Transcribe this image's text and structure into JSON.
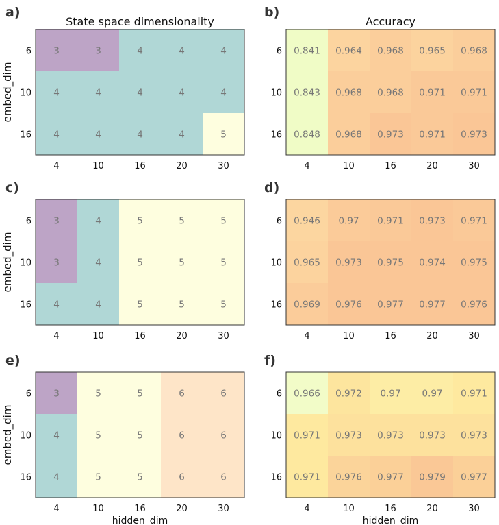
{
  "chart_data": [
    {
      "type": "heatmap",
      "panel": "a)",
      "title": "State space dimensionality",
      "xlabel": "",
      "ylabel": "embed_dim",
      "x": [
        "4",
        "10",
        "16",
        "20",
        "30"
      ],
      "y": [
        "6",
        "10",
        "16"
      ],
      "values": [
        [
          "3",
          "3",
          "4",
          "4",
          "4"
        ],
        [
          "4",
          "4",
          "4",
          "4",
          "4"
        ],
        [
          "4",
          "4",
          "4",
          "4",
          "5"
        ]
      ],
      "colormap": "discrete"
    },
    {
      "type": "heatmap",
      "panel": "b)",
      "title": "Accuracy",
      "xlabel": "",
      "ylabel": "",
      "x": [
        "4",
        "10",
        "16",
        "20",
        "30"
      ],
      "y": [
        "6",
        "10",
        "16"
      ],
      "values": [
        [
          "0.841",
          "0.964",
          "0.968",
          "0.965",
          "0.968"
        ],
        [
          "0.843",
          "0.968",
          "0.968",
          "0.971",
          "0.971"
        ],
        [
          "0.848",
          "0.968",
          "0.973",
          "0.971",
          "0.973"
        ]
      ],
      "colormap": "accuracy"
    },
    {
      "type": "heatmap",
      "panel": "c)",
      "title": "",
      "xlabel": "",
      "ylabel": "embed_dim",
      "x": [
        "4",
        "10",
        "16",
        "20",
        "30"
      ],
      "y": [
        "6",
        "10",
        "16"
      ],
      "values": [
        [
          "3",
          "4",
          "5",
          "5",
          "5"
        ],
        [
          "3",
          "4",
          "5",
          "5",
          "5"
        ],
        [
          "4",
          "4",
          "5",
          "5",
          "5"
        ]
      ],
      "colormap": "discrete"
    },
    {
      "type": "heatmap",
      "panel": "d)",
      "title": "",
      "xlabel": "",
      "ylabel": "",
      "x": [
        "4",
        "10",
        "16",
        "20",
        "30"
      ],
      "y": [
        "6",
        "10",
        "16"
      ],
      "values": [
        [
          "0.946",
          "0.97",
          "0.971",
          "0.973",
          "0.971"
        ],
        [
          "0.965",
          "0.973",
          "0.975",
          "0.974",
          "0.975"
        ],
        [
          "0.969",
          "0.976",
          "0.977",
          "0.977",
          "0.976"
        ]
      ],
      "colormap": "accuracy"
    },
    {
      "type": "heatmap",
      "panel": "e)",
      "title": "",
      "xlabel": "hidden_dim",
      "ylabel": "embed_dim",
      "x": [
        "4",
        "10",
        "16",
        "20",
        "30"
      ],
      "y": [
        "6",
        "10",
        "16"
      ],
      "values": [
        [
          "3",
          "5",
          "5",
          "6",
          "6"
        ],
        [
          "4",
          "5",
          "5",
          "6",
          "6"
        ],
        [
          "4",
          "5",
          "5",
          "6",
          "6"
        ]
      ],
      "colormap": "discrete"
    },
    {
      "type": "heatmap",
      "panel": "f)",
      "title": "",
      "xlabel": "hidden_dim",
      "ylabel": "",
      "x": [
        "4",
        "10",
        "16",
        "20",
        "30"
      ],
      "y": [
        "6",
        "10",
        "16"
      ],
      "values": [
        [
          "0.966",
          "0.972",
          "0.97",
          "0.97",
          "0.971"
        ],
        [
          "0.971",
          "0.973",
          "0.973",
          "0.973",
          "0.973"
        ],
        [
          "0.971",
          "0.976",
          "0.977",
          "0.979",
          "0.977"
        ]
      ],
      "colormap": "accuracy"
    }
  ],
  "colors": {
    "discrete": {
      "3": "#bda4c6",
      "4": "#b0d7d6",
      "5": "#fefedf",
      "6": "#fee5c8"
    }
  }
}
